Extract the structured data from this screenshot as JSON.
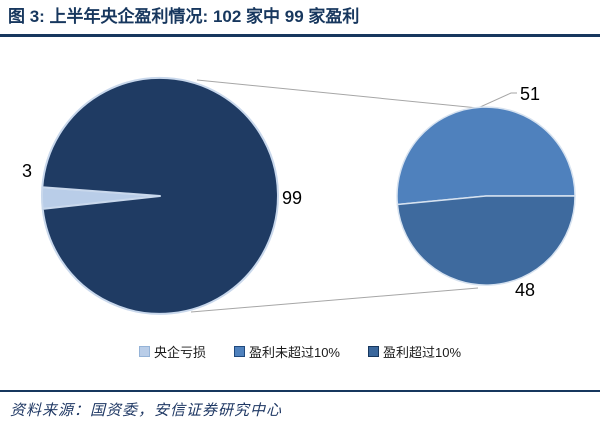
{
  "colors": {
    "accent_navy": "#17375E",
    "connector_gray": "#A6A6A6",
    "label_black": "#000000"
  },
  "header": {
    "title": "图 3: 上半年央企盈利情况: 102 家中 99 家盈利"
  },
  "chart_data": {
    "type": "pie",
    "subtype": "pie-of-pie",
    "title": "上半年央企盈利情况: 102 家中 99 家盈利",
    "total": 102,
    "categories": [
      "央企亏损",
      "盈利未超过10%",
      "盈利超过10%"
    ],
    "values": [
      3,
      51,
      48
    ],
    "main_pie": {
      "start_angle_deg": 173.7,
      "slices": [
        {
          "label": "3",
          "value": 3,
          "color": "#B9CDE8"
        },
        {
          "label": "99",
          "value": 99,
          "color": "#1F3B63"
        }
      ]
    },
    "secondary_pie": {
      "start_angle_deg": 174.5,
      "slices": [
        {
          "label": "51",
          "value": 51,
          "color": "#4F81BD"
        },
        {
          "label": "48",
          "value": 48,
          "color": "#3E6A9E"
        }
      ]
    },
    "legend": {
      "position": "bottom",
      "items": [
        {
          "label": "央企亏损",
          "color": "#B9CDE8",
          "border": "#95B3D7"
        },
        {
          "label": "盈利未超过10%",
          "color": "#4F81BD",
          "border": "#1F497D"
        },
        {
          "label": "盈利超过10%",
          "color": "#3A679C",
          "border": "#17375E"
        }
      ]
    }
  },
  "footer": {
    "source": "资料来源：国资委，安信证券研究中心"
  }
}
